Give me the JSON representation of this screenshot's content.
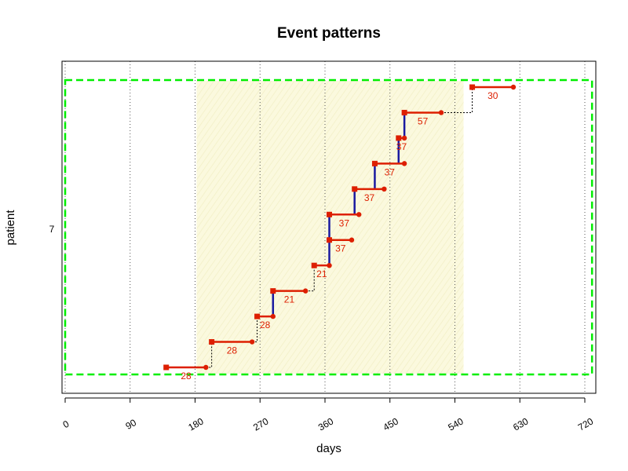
{
  "chart_data": {
    "type": "line",
    "title": "Event patterns",
    "xlabel": "days",
    "ylabel": "patient",
    "patient_id": "7",
    "xlim": [
      0,
      720
    ],
    "x_ticks": [
      0,
      90,
      180,
      270,
      360,
      450,
      540,
      630,
      720
    ],
    "x_tick_labels": [
      "0",
      "90",
      "180",
      "270",
      "360",
      "450",
      "540",
      "630",
      "720"
    ],
    "grid": "vertical dotted",
    "shaded_window": [
      182,
      552
    ],
    "time_window": [
      0,
      730
    ],
    "colors": {
      "episode": "#dd1f00",
      "gap_connector": "#000000",
      "overlap": "#1a1aa0",
      "window_border": "#00ee00",
      "shade": "#fbf9de"
    },
    "episodes": [
      {
        "start": 140,
        "end": 195,
        "label": "28"
      },
      {
        "start": 203,
        "end": 259,
        "label": "28"
      },
      {
        "start": 266,
        "end": 288,
        "label": "28"
      },
      {
        "start": 288,
        "end": 333,
        "label": "21"
      },
      {
        "start": 345,
        "end": 366,
        "label": "21"
      },
      {
        "start": 366,
        "end": 397,
        "label": "37"
      },
      {
        "start": 366,
        "end": 407,
        "label": "37"
      },
      {
        "start": 401,
        "end": 442,
        "label": "37"
      },
      {
        "start": 429,
        "end": 470,
        "label": "37"
      },
      {
        "start": 462,
        "end": 470,
        "label": "37"
      },
      {
        "start": 470,
        "end": 521,
        "label": "57"
      },
      {
        "start": 564,
        "end": 621,
        "label": "30"
      }
    ]
  }
}
